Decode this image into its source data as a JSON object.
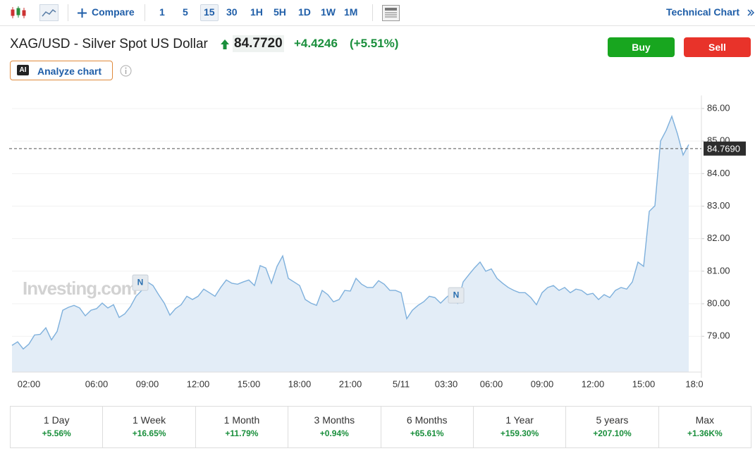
{
  "toolbar": {
    "compare": "Compare",
    "intervals": [
      "1",
      "5",
      "15",
      "30",
      "1H",
      "5H",
      "1D",
      "1W",
      "1M"
    ],
    "active_interval": "15",
    "technical_chart": "Technical Chart"
  },
  "header": {
    "title": "XAG/USD - Silver Spot US Dollar",
    "price": "84.7720",
    "change": "+4.4246",
    "change_pct": "(+5.51%)",
    "buy": "Buy",
    "sell": "Sell",
    "ai_badge": "AI",
    "analyze": "Analyze chart"
  },
  "chart_data": {
    "type": "line",
    "color": "#7eb0dc",
    "fill": "#e3edf7",
    "grid": true,
    "watermark": "Investing.com",
    "annotations": [
      "N",
      "N"
    ],
    "categories": [
      null,
      null,
      null,
      "02:00",
      null,
      null,
      null,
      null,
      null,
      null,
      null,
      null,
      null,
      null,
      null,
      "06:00",
      null,
      null,
      null,
      null,
      null,
      null,
      null,
      null,
      "09:00",
      null,
      null,
      null,
      null,
      null,
      null,
      null,
      null,
      "12:00",
      null,
      null,
      null,
      null,
      null,
      null,
      null,
      null,
      "15:00",
      null,
      null,
      null,
      null,
      null,
      null,
      null,
      null,
      "18:00",
      null,
      null,
      null,
      null,
      null,
      null,
      null,
      null,
      "21:00",
      null,
      null,
      null,
      null,
      null,
      null,
      null,
      null,
      "5/11",
      null,
      null,
      null,
      null,
      null,
      null,
      null,
      "03:30",
      null,
      null,
      null,
      null,
      null,
      null,
      null,
      "06:00",
      null,
      null,
      null,
      null,
      null,
      null,
      null,
      null,
      "09:00",
      null,
      null,
      null,
      null,
      null,
      null,
      null,
      null,
      "12:00",
      null,
      null,
      null,
      null,
      null,
      null,
      null,
      null,
      "15:00",
      null,
      null,
      null,
      null,
      null,
      null,
      null,
      null,
      "18:0"
    ],
    "values": [
      78.72,
      78.83,
      78.61,
      78.76,
      79.04,
      79.06,
      79.26,
      78.89,
      79.15,
      79.8,
      79.89,
      79.95,
      79.87,
      79.63,
      79.8,
      79.85,
      80.02,
      79.87,
      79.97,
      79.58,
      79.69,
      79.91,
      80.23,
      80.41,
      80.67,
      80.56,
      80.28,
      80.02,
      79.65,
      79.85,
      79.97,
      80.23,
      80.13,
      80.23,
      80.45,
      80.34,
      80.23,
      80.5,
      80.73,
      80.63,
      80.6,
      80.67,
      80.73,
      80.56,
      81.17,
      81.1,
      80.63,
      81.15,
      81.47,
      80.78,
      80.67,
      80.56,
      80.13,
      80.02,
      79.95,
      80.41,
      80.28,
      80.06,
      80.13,
      80.41,
      80.39,
      80.78,
      80.6,
      80.5,
      80.5,
      80.71,
      80.6,
      80.41,
      80.41,
      80.34,
      79.54,
      79.8,
      79.95,
      80.06,
      80.23,
      80.19,
      80.02,
      80.19,
      80.34,
      80.02,
      80.67,
      80.89,
      81.1,
      81.28,
      81.0,
      81.07,
      80.78,
      80.63,
      80.5,
      80.41,
      80.34,
      80.34,
      80.19,
      79.97,
      80.34,
      80.5,
      80.56,
      80.41,
      80.5,
      80.34,
      80.45,
      80.41,
      80.28,
      80.32,
      80.13,
      80.28,
      80.19,
      80.41,
      80.5,
      80.45,
      80.67,
      81.28,
      81.15,
      82.84,
      83.01,
      85.0,
      85.33,
      85.76,
      85.22,
      84.57,
      84.89,
      null
    ],
    "ylim": [
      77.9,
      86.4
    ],
    "yticks": [
      {
        "value": 79,
        "label": "79.00"
      },
      {
        "value": 80,
        "label": "80.00"
      },
      {
        "value": 81,
        "label": "81.00"
      },
      {
        "value": 82,
        "label": "82.00"
      },
      {
        "value": 83,
        "label": "83.00"
      },
      {
        "value": 84,
        "label": "84.00"
      },
      {
        "value": 85,
        "label": "85.00"
      },
      {
        "value": 86,
        "label": "86.00"
      }
    ],
    "current_value": 84.769,
    "current_label": "84.7690"
  },
  "performance": [
    {
      "period": "1 Day",
      "change": "+5.56%"
    },
    {
      "period": "1 Week",
      "change": "+16.65%"
    },
    {
      "period": "1 Month",
      "change": "+11.79%"
    },
    {
      "period": "3 Months",
      "change": "+0.94%"
    },
    {
      "period": "6 Months",
      "change": "+65.61%"
    },
    {
      "period": "1 Year",
      "change": "+159.30%"
    },
    {
      "period": "5 years",
      "change": "+207.10%"
    },
    {
      "period": "Max",
      "change": "+1.36K%"
    }
  ]
}
